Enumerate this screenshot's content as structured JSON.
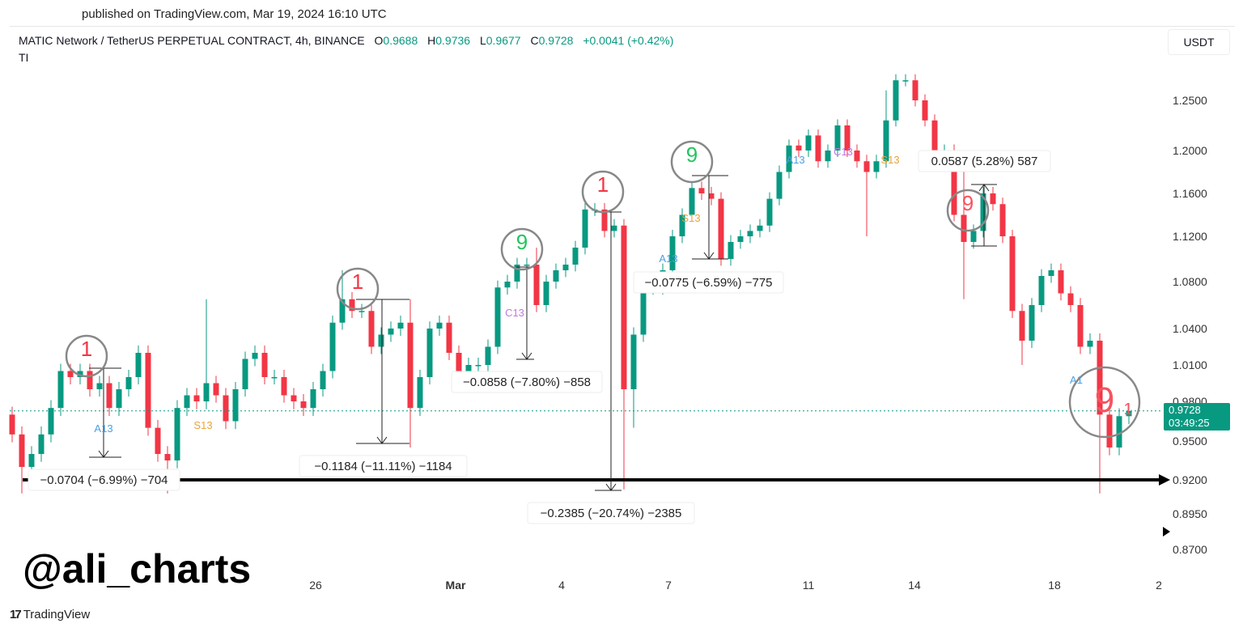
{
  "published": "published on TradingView.com, Mar 19, 2024 16:10 UTC",
  "header": {
    "symbol": "MATIC Network / TetherUS PERPETUAL CONTRACT, 4h, BINANCE",
    "o_label": "O",
    "o": "0.9688",
    "h_label": "H",
    "h": "0.9736",
    "l_label": "L",
    "l": "0.9677",
    "c_label": "C",
    "c": "0.9728",
    "change": "+0.0041 (+0.42%)",
    "indicator": "TI"
  },
  "currency_button": "USDT",
  "price_tag": {
    "price": "0.9728",
    "countdown": "03:49:25"
  },
  "watermark": "@ali_charts",
  "footer_brand": "TradingView",
  "footer_logo": "17",
  "colors": {
    "up": "#089981",
    "down": "#f23645",
    "tag": "#089981"
  },
  "chart_data": {
    "type": "candlestick",
    "title": "MATIC Network / TetherUS PERPETUAL CONTRACT, 4h, BINANCE",
    "y_ticks": [
      "1.2500",
      "1.2000",
      "1.1600",
      "1.1200",
      "1.0800",
      "1.0400",
      "1.0100",
      "0.9800",
      "0.9500",
      "0.9200",
      "0.8950",
      "0.8700"
    ],
    "x_ticks": [
      "26",
      "Mar",
      "4",
      "7",
      "11",
      "14",
      "18",
      "2"
    ],
    "first_open": 0.97,
    "closes": [
      0.955,
      0.93,
      0.94,
      0.955,
      0.975,
      1.005,
      1.0,
      1.005,
      0.99,
      0.995,
      0.975,
      0.99,
      1.0,
      1.02,
      0.96,
      0.94,
      0.935,
      0.975,
      0.985,
      0.98,
      0.995,
      0.985,
      0.965,
      0.99,
      1.015,
      1.02,
      1.0,
      1.0,
      0.985,
      0.98,
      0.975,
      0.99,
      1.005,
      1.045,
      1.065,
      1.055,
      1.055,
      1.025,
      1.035,
      1.04,
      1.045,
      0.975,
      1.0,
      1.04,
      1.045,
      1.02,
      1.005,
      1.01,
      1.01,
      1.025,
      1.075,
      1.08,
      1.095,
      1.095,
      1.06,
      1.08,
      1.09,
      1.095,
      1.11,
      1.145,
      1.145,
      1.125,
      1.13,
      0.99,
      1.035,
      1.075,
      1.075,
      1.09,
      1.12,
      1.14,
      1.165,
      1.16,
      1.155,
      1.1,
      1.115,
      1.12,
      1.125,
      1.13,
      1.155,
      1.18,
      1.205,
      1.2,
      1.215,
      1.19,
      1.2,
      1.225,
      1.2,
      1.19,
      1.18,
      1.19,
      1.23,
      1.27,
      1.27,
      1.25,
      1.23,
      1.2,
      1.2,
      1.14,
      1.115,
      1.125,
      1.16,
      1.15,
      1.12,
      1.055,
      1.03,
      1.06,
      1.085,
      1.09,
      1.07,
      1.06,
      1.025,
      1.03,
      0.97,
      0.945,
      0.9688,
      0.9728
    ],
    "high_overrides": {
      "20": 1.065,
      "34": 1.09,
      "41": 1.065,
      "54": 1.11,
      "90": 1.26,
      "98": 1.2
    },
    "low_overrides": {
      "1": 0.91,
      "16": 0.91,
      "41": 0.945,
      "63": 0.913,
      "64": 0.96,
      "88": 1.12,
      "98": 1.065,
      "112": 0.91,
      "104": 1.01
    },
    "last_price_line": 0.9728,
    "support_line": 0.92,
    "tds_markers": [
      {
        "text": "1",
        "color": "#f23645"
      },
      {
        "text": "1",
        "color": "#f23645"
      },
      {
        "text": "9",
        "color": "#22c55e"
      },
      {
        "text": "1",
        "color": "#f23645"
      },
      {
        "text": "9",
        "color": "#22c55e"
      },
      {
        "text": "9",
        "color": "#f7525f"
      },
      {
        "text": "9",
        "color": "#f7525f"
      },
      {
        "text": "1",
        "color": "#f7525f"
      }
    ],
    "countdown_labels": [
      "A13",
      "S13",
      "C13",
      "A13",
      "S13",
      "A13",
      "C13",
      "S13",
      "A1"
    ],
    "measurements": [
      "−0.0704 (−6.99%) −704",
      "−0.1184 (−11.11%) −1184",
      "−0.0858 (−7.80%) −858",
      "−0.2385 (−20.74%) −2385",
      "−0.0775 (−6.59%) −775",
      "0.0587 (5.28%) 587"
    ]
  }
}
